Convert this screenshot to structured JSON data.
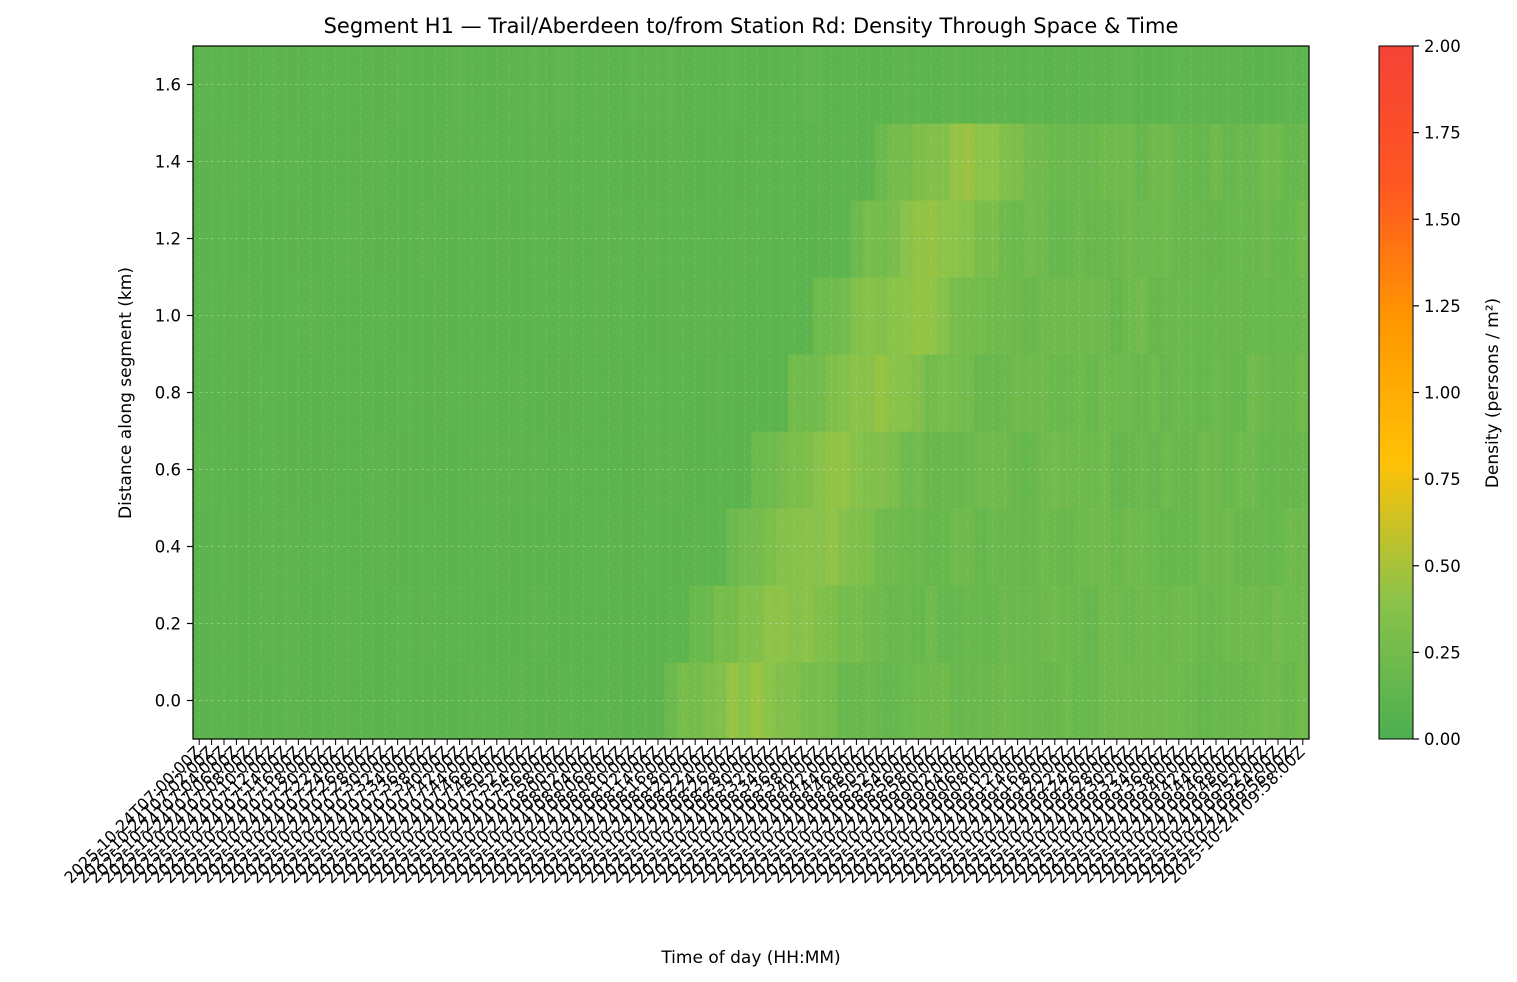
{
  "chart_data": {
    "type": "heatmap",
    "title": "Segment H1 — Trail/Aberdeen to/from Station Rd: Density Through Space & Time",
    "xlabel": "Time of day (HH:MM)",
    "ylabel": "Distance along segment (km)",
    "x_start": "2025-10-24T07:00:00Z",
    "x_end": "2025-10-24T09:58:00Z",
    "x_step_minutes": 2,
    "x_first_label": "2025-10-24T07:00:00Z",
    "x_last_label": "2025-10-24T09:58:00Z",
    "y_bins_km": [
      0.0,
      0.2,
      0.4,
      0.6,
      0.8,
      1.0,
      1.2,
      1.4,
      1.6
    ],
    "yticks": [
      "0.0",
      "0.2",
      "0.4",
      "0.6",
      "0.8",
      "1.0",
      "1.2",
      "1.4",
      "1.6"
    ],
    "ylim": [
      -0.1,
      1.7
    ],
    "grid": true,
    "colorbar": {
      "label": "Density (persons / m²)",
      "range": [
        0.0,
        2.0
      ],
      "ticks": [
        "0.00",
        "0.25",
        "0.50",
        "0.75",
        "1.00",
        "1.25",
        "1.50",
        "1.75",
        "2.00"
      ],
      "colors": [
        "#4caf50",
        "#8bc34a",
        "#ffc107",
        "#ff9800",
        "#ff5722",
        "#f44336"
      ]
    },
    "density_summary": {
      "baseline_before_08_15": 0.1,
      "peak_08_22_to_08_36": 0.42,
      "after_08_40_typical": 0.2,
      "top_bin_1_6km": 0.1
    }
  }
}
